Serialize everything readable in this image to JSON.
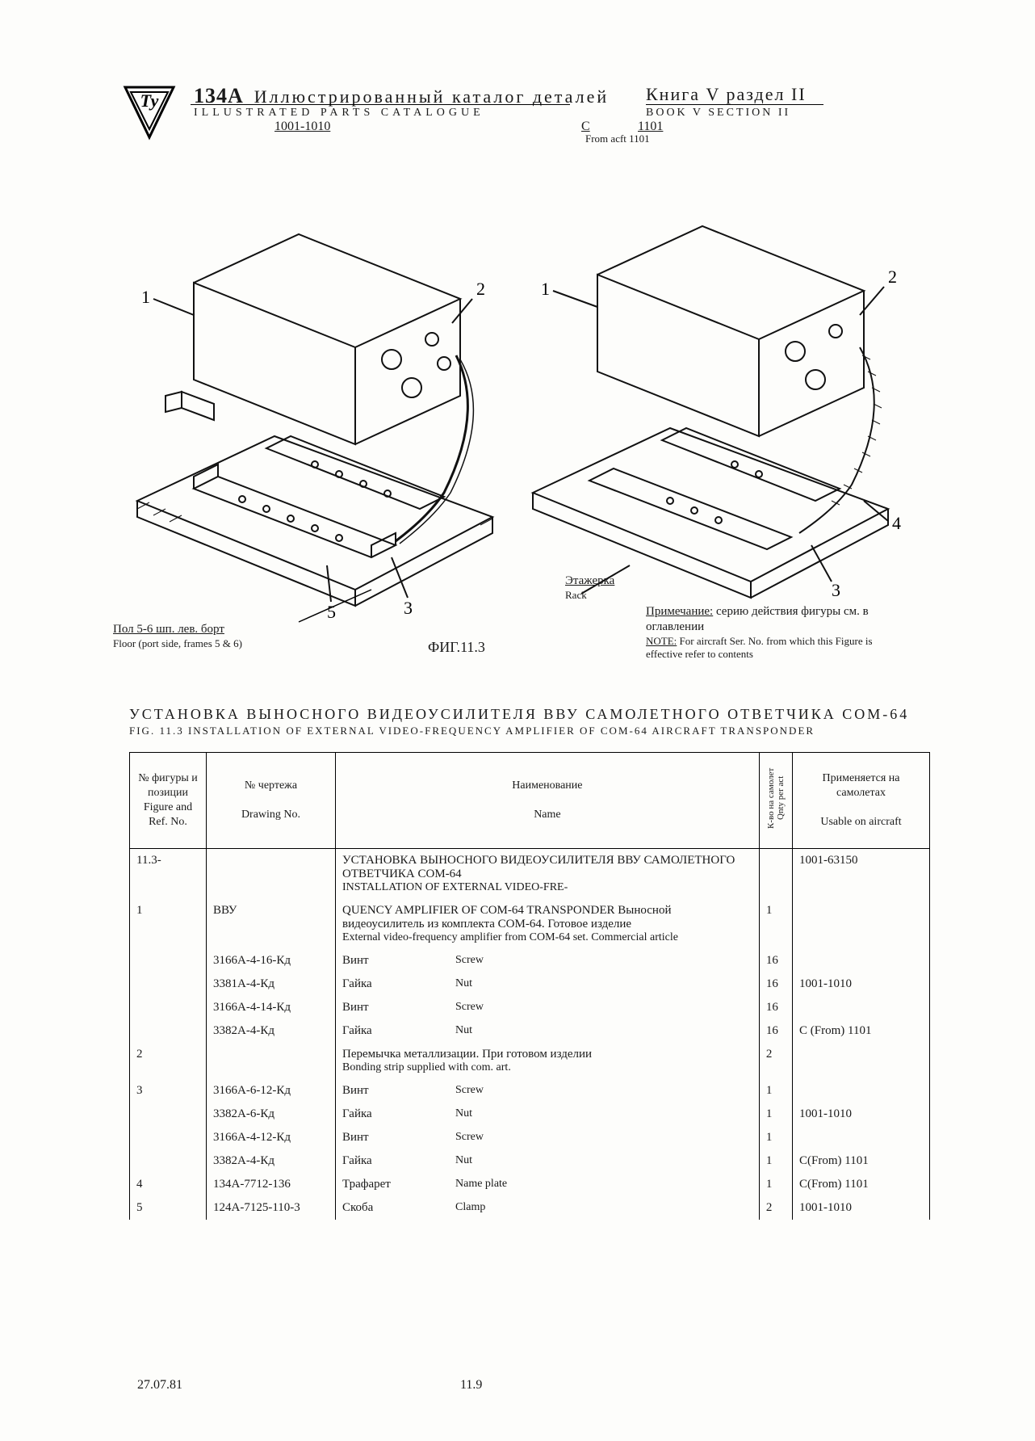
{
  "header": {
    "model": "134А",
    "title_ru": "Иллюстрированный каталог деталей",
    "title_en": "ILLUSTRATED PARTS CATALOGUE",
    "book_ru": "Книга V раздел II",
    "book_en": "BOOK V SECTION II",
    "range": "1001-1010",
    "c_label": "С",
    "c_num": "1101",
    "from_acft": "From acft 1101"
  },
  "figure": {
    "callout_1": "1",
    "callout_2": "2",
    "callout_3": "3",
    "callout_4": "4",
    "callout_5": "5",
    "rack_ru": "Этажерка",
    "rack_en": "Rack",
    "floor_ru": "Пол 5-6 шп. лев. борт",
    "floor_en": "Floor (port side, frames 5 & 6)",
    "note_ru1": "Примечание:",
    "note_ru2": "серию действия фигуры см. в оглавлении",
    "note_en1": "NOTE:",
    "note_en2": "For aircraft Ser. No. from which this Figure is effective refer to contents",
    "fig_id": "ФИГ.11.3",
    "title_ru": "УСТАНОВКА ВЫНОСНОГО ВИДЕОУСИЛИТЕЛЯ ВВУ САМОЛЕТНОГО ОТВЕТЧИКА СОМ-64",
    "title_en": "FIG. 11.3 INSTALLATION OF EXTERNAL VIDEO-FREQUENCY AMPLIFIER OF COM-64 AIRCRAFT TRANSPONDER"
  },
  "table": {
    "headers": {
      "fig_ru": "№ фигуры и позиции",
      "fig_en": "Figure and Ref. No.",
      "dwg_ru": "№ чертежа",
      "dwg_en": "Drawing No.",
      "name_ru": "Наименование",
      "name_en": "Name",
      "qty_ru": "К-во на самолет",
      "qty_en": "Qnty per act",
      "use_ru": "Применяется на самолетах",
      "use_en": "Usable on aircraft"
    },
    "rows": [
      {
        "ref": "11.3-",
        "dwg": "",
        "name_ru": "УСТАНОВКА ВЫНОСНОГО ВИДЕОУСИЛИТЕЛЯ ВВУ САМОЛЕТНОГО ОТВЕТЧИКА СОМ-64",
        "name_en": "INSTALLATION OF EXTERNAL VIDEO-FRE-",
        "qty": "",
        "use": "1001-63150"
      },
      {
        "ref": "1",
        "dwg": "ВВУ",
        "name_ru": "QUENCY AMPLIFIER OF COM-64 TRANSPONDER\nВыносной видеоусилитель из комплекта СОМ-64. Готовое изделие",
        "name_en": "External video-frequency amplifier from COM-64 set. Commercial article",
        "qty": "1",
        "use": ""
      },
      {
        "ref": "",
        "dwg": "3166А-4-16-Кд",
        "name_ru": "Винт",
        "name_en": "Screw",
        "qty": "16",
        "use": ""
      },
      {
        "ref": "",
        "dwg": "3381А-4-Кд",
        "name_ru": "Гайка",
        "name_en": "Nut",
        "qty": "16",
        "use": "1001-1010"
      },
      {
        "ref": "",
        "dwg": "3166А-4-14-Кд",
        "name_ru": "Винт",
        "name_en": "Screw",
        "qty": "16",
        "use": ""
      },
      {
        "ref": "",
        "dwg": "3382А-4-Кд",
        "name_ru": "Гайка",
        "name_en": "Nut",
        "qty": "16",
        "use": "С (From) 1101"
      },
      {
        "ref": "2",
        "dwg": "",
        "name_ru": "Перемычка металлизации. При готовом изделии",
        "name_en": "Bonding strip supplied with com. art.",
        "qty": "2",
        "use": ""
      },
      {
        "ref": "3",
        "dwg": "3166А-6-12-Кд",
        "name_ru": "Винт",
        "name_en": "Screw",
        "qty": "1",
        "use": ""
      },
      {
        "ref": "",
        "dwg": "3382А-6-Кд",
        "name_ru": "Гайка",
        "name_en": "Nut",
        "qty": "1",
        "use": "1001-1010"
      },
      {
        "ref": "",
        "dwg": "3166А-4-12-Кд",
        "name_ru": "Винт",
        "name_en": "Screw",
        "qty": "1",
        "use": ""
      },
      {
        "ref": "",
        "dwg": "3382А-4-Кд",
        "name_ru": "Гайка",
        "name_en": "Nut",
        "qty": "1",
        "use": "С(From) 1101"
      },
      {
        "ref": "4",
        "dwg": "134А-7712-136",
        "name_ru": "Трафарет",
        "name_en": "Name plate",
        "qty": "1",
        "use": "С(From) 1101"
      },
      {
        "ref": "5",
        "dwg": "124А-7125-110-3",
        "name_ru": "Скоба",
        "name_en": "Clamp",
        "qty": "2",
        "use": "1001-1010"
      }
    ]
  },
  "footer": {
    "date": "27.07.81",
    "page": "11.9"
  },
  "colors": {
    "ink": "#1a1a1a",
    "paper": "#fdfdfb"
  }
}
